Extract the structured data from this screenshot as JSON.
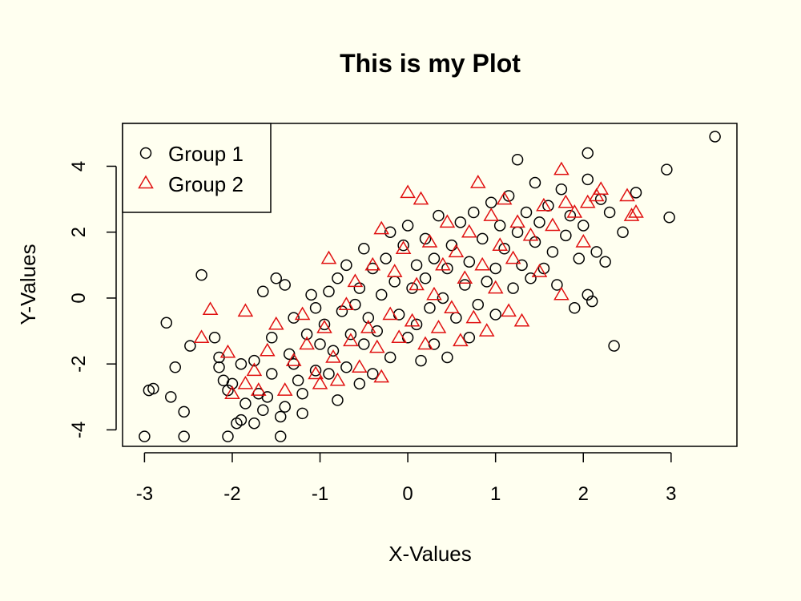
{
  "chart_data": {
    "type": "scatter",
    "title": "This is my Plot",
    "xlabel": "X-Values",
    "ylabel": "Y-Values",
    "xlim": [
      -3.25,
      3.75
    ],
    "ylim": [
      -4.5,
      5.3
    ],
    "xticks": [
      -3,
      -2,
      -1,
      0,
      1,
      2,
      3
    ],
    "yticks": [
      -4,
      -2,
      0,
      2,
      4
    ],
    "grid": false,
    "legend_position": "top-left",
    "series": [
      {
        "name": "Group 1",
        "marker": "circle",
        "color": "#000000",
        "points": [
          [
            -3.0,
            -4.2
          ],
          [
            -2.95,
            -2.8
          ],
          [
            -2.9,
            -2.75
          ],
          [
            -2.75,
            -0.75
          ],
          [
            -2.7,
            -3.0
          ],
          [
            -2.65,
            -2.1
          ],
          [
            -2.55,
            -3.45
          ],
          [
            -2.55,
            -4.2
          ],
          [
            -2.48,
            -1.45
          ],
          [
            -2.35,
            0.7
          ],
          [
            -2.2,
            -1.2
          ],
          [
            -2.15,
            -2.1
          ],
          [
            -2.15,
            -1.8
          ],
          [
            -2.1,
            -2.5
          ],
          [
            -2.05,
            -4.2
          ],
          [
            -2.05,
            -2.8
          ],
          [
            -2.0,
            -2.6
          ],
          [
            -1.95,
            -3.8
          ],
          [
            -1.9,
            -3.7
          ],
          [
            -1.9,
            -2.0
          ],
          [
            -1.85,
            -3.2
          ],
          [
            -1.75,
            -3.8
          ],
          [
            -1.75,
            -1.9
          ],
          [
            -1.7,
            -2.9
          ],
          [
            -1.65,
            -3.4
          ],
          [
            -1.65,
            0.2
          ],
          [
            -1.6,
            -3.0
          ],
          [
            -1.55,
            -2.3
          ],
          [
            -1.55,
            -1.2
          ],
          [
            -1.5,
            0.6
          ],
          [
            -1.45,
            -3.6
          ],
          [
            -1.45,
            -4.2
          ],
          [
            -1.4,
            -3.3
          ],
          [
            -1.4,
            0.4
          ],
          [
            -1.35,
            -1.7
          ],
          [
            -1.3,
            -2.0
          ],
          [
            -1.3,
            -0.6
          ],
          [
            -1.25,
            -2.5
          ],
          [
            -1.2,
            -3.5
          ],
          [
            -1.2,
            -2.9
          ],
          [
            -1.15,
            -1.1
          ],
          [
            -1.1,
            0.1
          ],
          [
            -1.05,
            -2.2
          ],
          [
            -1.05,
            -0.3
          ],
          [
            -1.0,
            -1.4
          ],
          [
            -0.95,
            -0.8
          ],
          [
            -0.9,
            0.2
          ],
          [
            -0.9,
            -2.3
          ],
          [
            -0.85,
            -1.6
          ],
          [
            -0.8,
            0.6
          ],
          [
            -0.8,
            -3.1
          ],
          [
            -0.75,
            -0.4
          ],
          [
            -0.7,
            -2.1
          ],
          [
            -0.7,
            1.0
          ],
          [
            -0.65,
            -1.1
          ],
          [
            -0.6,
            -0.2
          ],
          [
            -0.55,
            0.3
          ],
          [
            -0.55,
            -2.6
          ],
          [
            -0.5,
            -1.4
          ],
          [
            -0.5,
            1.5
          ],
          [
            -0.45,
            -0.6
          ],
          [
            -0.4,
            0.9
          ],
          [
            -0.4,
            -2.3
          ],
          [
            -0.35,
            -1.0
          ],
          [
            -0.3,
            0.1
          ],
          [
            -0.25,
            1.2
          ],
          [
            -0.2,
            -1.8
          ],
          [
            -0.2,
            2.0
          ],
          [
            -0.15,
            0.5
          ],
          [
            -0.1,
            -0.5
          ],
          [
            -0.05,
            1.6
          ],
          [
            0.0,
            -1.2
          ],
          [
            0.0,
            2.2
          ],
          [
            0.05,
            0.3
          ],
          [
            0.1,
            -0.8
          ],
          [
            0.1,
            1.0
          ],
          [
            0.15,
            -1.9
          ],
          [
            0.2,
            0.6
          ],
          [
            0.2,
            1.8
          ],
          [
            0.25,
            -0.3
          ],
          [
            0.3,
            1.2
          ],
          [
            0.3,
            -1.4
          ],
          [
            0.35,
            2.5
          ],
          [
            0.4,
            0.0
          ],
          [
            0.45,
            0.9
          ],
          [
            0.45,
            -1.8
          ],
          [
            0.5,
            1.6
          ],
          [
            0.55,
            -0.6
          ],
          [
            0.6,
            2.3
          ],
          [
            0.65,
            0.4
          ],
          [
            0.7,
            1.1
          ],
          [
            0.7,
            -1.2
          ],
          [
            0.75,
            2.6
          ],
          [
            0.8,
            -0.2
          ],
          [
            0.85,
            1.8
          ],
          [
            0.9,
            0.5
          ],
          [
            0.95,
            2.9
          ],
          [
            1.0,
            0.9
          ],
          [
            1.0,
            -0.5
          ],
          [
            1.05,
            2.2
          ],
          [
            1.1,
            1.5
          ],
          [
            1.15,
            3.1
          ],
          [
            1.2,
            0.3
          ],
          [
            1.25,
            2.0
          ],
          [
            1.25,
            4.2
          ],
          [
            1.3,
            1.0
          ],
          [
            1.35,
            2.6
          ],
          [
            1.4,
            0.6
          ],
          [
            1.45,
            1.7
          ],
          [
            1.45,
            3.5
          ],
          [
            1.5,
            2.3
          ],
          [
            1.55,
            0.9
          ],
          [
            1.6,
            2.8
          ],
          [
            1.65,
            1.4
          ],
          [
            1.7,
            0.4
          ],
          [
            1.75,
            3.3
          ],
          [
            1.8,
            1.9
          ],
          [
            1.85,
            2.5
          ],
          [
            1.9,
            -0.3
          ],
          [
            1.95,
            1.2
          ],
          [
            2.0,
            2.2
          ],
          [
            2.05,
            4.4
          ],
          [
            2.05,
            3.6
          ],
          [
            2.05,
            0.1
          ],
          [
            2.1,
            -0.1
          ],
          [
            2.15,
            1.4
          ],
          [
            2.2,
            3.0
          ],
          [
            2.25,
            1.1
          ],
          [
            2.3,
            2.6
          ],
          [
            2.35,
            -1.45
          ],
          [
            2.45,
            2.0
          ],
          [
            2.6,
            3.2
          ],
          [
            2.95,
            3.9
          ],
          [
            2.98,
            2.45
          ],
          [
            3.5,
            4.9
          ]
        ]
      },
      {
        "name": "Group 2",
        "marker": "triangle",
        "color": "#E01010",
        "points": [
          [
            -2.35,
            -1.2
          ],
          [
            -2.25,
            -0.35
          ],
          [
            -2.05,
            -1.65
          ],
          [
            -2.0,
            -2.9
          ],
          [
            -1.85,
            -2.6
          ],
          [
            -1.85,
            -0.4
          ],
          [
            -1.75,
            -2.2
          ],
          [
            -1.7,
            -2.8
          ],
          [
            -1.6,
            -1.6
          ],
          [
            -1.5,
            -0.8
          ],
          [
            -1.4,
            -2.8
          ],
          [
            -1.3,
            -1.9
          ],
          [
            -1.2,
            -0.5
          ],
          [
            -1.15,
            -1.4
          ],
          [
            -1.05,
            -2.3
          ],
          [
            -1.0,
            -2.6
          ],
          [
            -0.95,
            -0.9
          ],
          [
            -0.9,
            1.2
          ],
          [
            -0.85,
            -1.8
          ],
          [
            -0.8,
            -2.5
          ],
          [
            -0.7,
            -0.2
          ],
          [
            -0.65,
            -1.3
          ],
          [
            -0.6,
            0.5
          ],
          [
            -0.55,
            -2.1
          ],
          [
            -0.45,
            -0.9
          ],
          [
            -0.4,
            1.0
          ],
          [
            -0.35,
            -1.5
          ],
          [
            -0.3,
            -2.4
          ],
          [
            -0.3,
            2.1
          ],
          [
            -0.2,
            -0.5
          ],
          [
            -0.15,
            0.8
          ],
          [
            -0.1,
            -1.2
          ],
          [
            -0.05,
            1.5
          ],
          [
            0.0,
            3.2
          ],
          [
            0.05,
            -0.7
          ],
          [
            0.1,
            0.4
          ],
          [
            0.15,
            3.0
          ],
          [
            0.2,
            -1.4
          ],
          [
            0.25,
            1.7
          ],
          [
            0.3,
            0.1
          ],
          [
            0.35,
            -0.9
          ],
          [
            0.4,
            1.0
          ],
          [
            0.45,
            2.3
          ],
          [
            0.5,
            -0.3
          ],
          [
            0.55,
            1.4
          ],
          [
            0.6,
            -1.3
          ],
          [
            0.65,
            0.6
          ],
          [
            0.7,
            2.0
          ],
          [
            0.75,
            -0.6
          ],
          [
            0.8,
            3.5
          ],
          [
            0.85,
            1.0
          ],
          [
            0.9,
            -1.0
          ],
          [
            0.95,
            2.5
          ],
          [
            1.0,
            0.3
          ],
          [
            1.05,
            1.6
          ],
          [
            1.1,
            3.0
          ],
          [
            1.15,
            -0.4
          ],
          [
            1.2,
            1.2
          ],
          [
            1.25,
            2.3
          ],
          [
            1.3,
            -0.7
          ],
          [
            1.4,
            1.9
          ],
          [
            1.5,
            0.8
          ],
          [
            1.55,
            2.8
          ],
          [
            1.65,
            2.2
          ],
          [
            1.75,
            3.9
          ],
          [
            1.75,
            0.1
          ],
          [
            1.8,
            2.9
          ],
          [
            1.9,
            2.6
          ],
          [
            2.0,
            1.7
          ],
          [
            2.05,
            2.9
          ],
          [
            2.15,
            3.1
          ],
          [
            2.2,
            3.3
          ],
          [
            2.5,
            3.1
          ],
          [
            2.55,
            2.5
          ],
          [
            2.6,
            2.6
          ]
        ]
      }
    ]
  }
}
